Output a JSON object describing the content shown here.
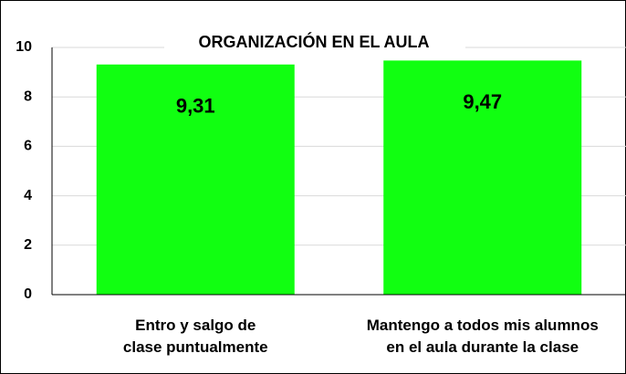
{
  "chart_data": {
    "type": "bar",
    "title": "ORGANIZACIÓN EN EL AULA",
    "categories": [
      "Entro y salgo de clase puntualmente",
      "Mantengo a todos mis alumnos en el aula durante la clase"
    ],
    "values": [
      9.31,
      9.47
    ],
    "value_labels": [
      "9,31",
      "9,47"
    ],
    "color": "#11ff11",
    "ylim": [
      0,
      10
    ],
    "yticks": [
      0,
      2,
      4,
      6,
      8,
      10
    ],
    "grid": true
  }
}
